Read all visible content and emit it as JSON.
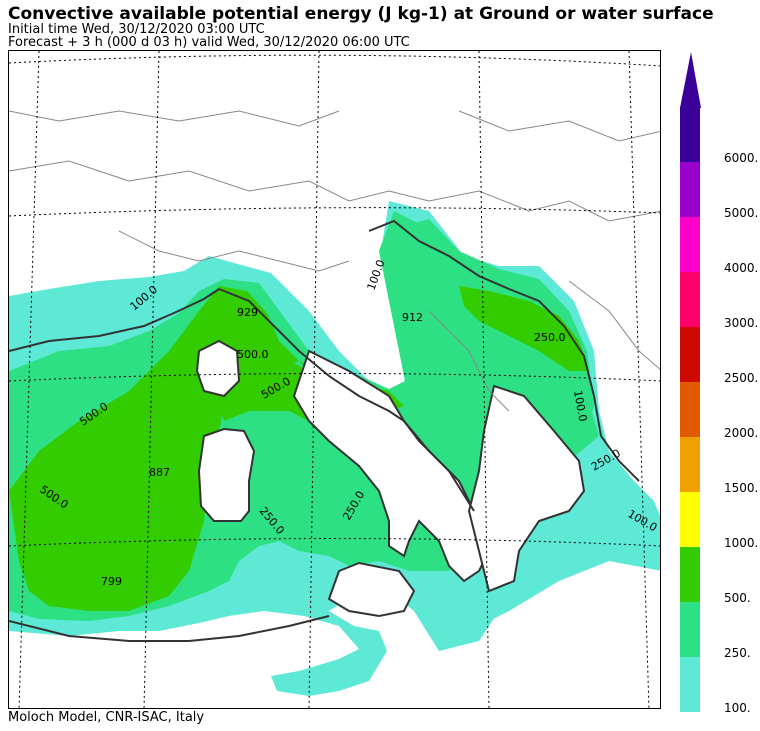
{
  "header": {
    "title": "Convective available potential energy (J kg-1) at Ground or water surface",
    "initial_time": "Initial time  Wed, 30/12/2020  03:00 UTC",
    "forecast": "Forecast  +   3 h  (000 d 03 h)  valid Wed, 30/12/2020 06:00 UTC"
  },
  "footer": {
    "credit": "Moloch Model, CNR-ISAC, Italy"
  },
  "colors": {
    "c100": "#5ee8d6",
    "c250": "#2ee084",
    "c500": "#33cc00",
    "c1000": "#ffff00",
    "c1500": "#f0a000",
    "c2000": "#e05a00",
    "c2500": "#cc0a00",
    "c3000": "#ff006a",
    "c4000": "#ff00cc",
    "c5000": "#9900cc",
    "c6000": "#3a0099",
    "land_border": "#333333",
    "country_border": "#888888"
  },
  "legend": {
    "items": [
      {
        "label": "6000.",
        "color": "#3a0099"
      },
      {
        "label": "5000.",
        "color": "#9900cc"
      },
      {
        "label": "4000.",
        "color": "#ff00cc"
      },
      {
        "label": "3000.",
        "color": "#ff006a"
      },
      {
        "label": "2500.",
        "color": "#cc0a00"
      },
      {
        "label": "2000.",
        "color": "#e05a00"
      },
      {
        "label": "1500.",
        "color": "#f0a000"
      },
      {
        "label": "1000.",
        "color": "#ffff00"
      },
      {
        "label": "500.",
        "color": "#33cc00"
      },
      {
        "label": "250.",
        "color": "#2ee084"
      },
      {
        "label": "100.",
        "color": "#5ee8d6"
      }
    ]
  },
  "contour_labels": {
    "l929": "929",
    "l887": "887",
    "l799": "799",
    "l500a": "500.0",
    "l500b": "500.0",
    "l500c": "500.0",
    "l500d": "500.0",
    "l250a": "250.0",
    "l250b": "250.0",
    "l250c": "250.0",
    "l250d": "250.0",
    "l100a": "100.0",
    "l100b": "100.0",
    "l100c": "100.0",
    "l100d": "100.0",
    "l912": "912"
  }
}
